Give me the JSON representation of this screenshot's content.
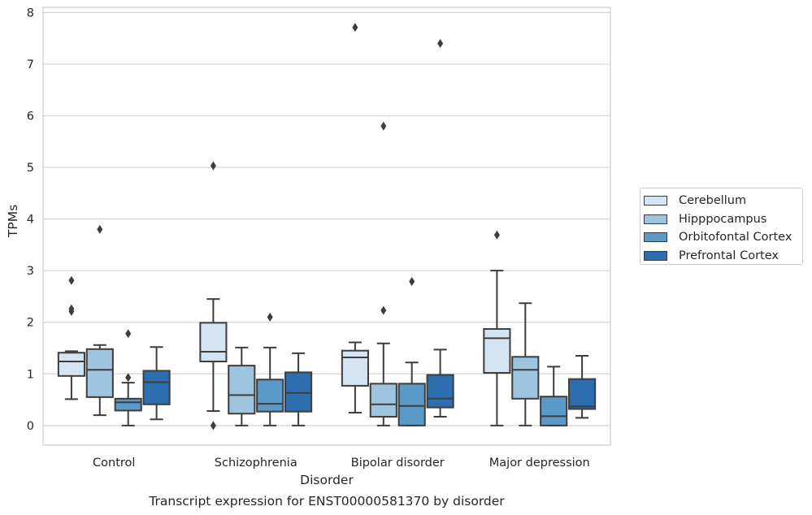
{
  "chart_data": {
    "type": "box",
    "title": "Transcript expression for ENST00000581370 by disorder",
    "xlabel": "Disorder",
    "ylabel": "TPMs",
    "ylim": [
      -0.38,
      8.1
    ],
    "yticks": [
      0,
      1,
      2,
      3,
      4,
      5,
      6,
      7,
      8
    ],
    "grid": true,
    "legend_position": "right",
    "categories": [
      "Control",
      "Schizophrenia",
      "Bipolar disorder",
      "Major depression"
    ],
    "series": [
      {
        "name": "Cerebellum",
        "color": "#d4e4f3",
        "boxes": [
          {
            "whisker_low": 0.51,
            "q1": 0.96,
            "median": 1.24,
            "q3": 1.41,
            "whisker_high": 1.44,
            "outliers": [
              2.21,
              2.26,
              2.81
            ]
          },
          {
            "whisker_low": 0.28,
            "q1": 1.24,
            "median": 1.43,
            "q3": 1.99,
            "whisker_high": 2.45,
            "outliers": [
              0.0,
              5.03
            ]
          },
          {
            "whisker_low": 0.25,
            "q1": 0.77,
            "median": 1.32,
            "q3": 1.45,
            "whisker_high": 1.61,
            "outliers": [
              7.71
            ]
          },
          {
            "whisker_low": 0.0,
            "q1": 1.02,
            "median": 1.69,
            "q3": 1.87,
            "whisker_high": 3.0,
            "outliers": [
              3.69
            ]
          }
        ]
      },
      {
        "name": "Hipppocampus",
        "color": "#9ec5e0",
        "boxes": [
          {
            "whisker_low": 0.2,
            "q1": 0.55,
            "median": 1.08,
            "q3": 1.48,
            "whisker_high": 1.56,
            "outliers": [
              3.8
            ]
          },
          {
            "whisker_low": 0.0,
            "q1": 0.23,
            "median": 0.59,
            "q3": 1.16,
            "whisker_high": 1.51,
            "outliers": []
          },
          {
            "whisker_low": 0.0,
            "q1": 0.17,
            "median": 0.41,
            "q3": 0.81,
            "whisker_high": 1.59,
            "outliers": [
              2.23,
              5.8
            ]
          },
          {
            "whisker_low": 0.0,
            "q1": 0.52,
            "median": 1.08,
            "q3": 1.33,
            "whisker_high": 2.37,
            "outliers": []
          }
        ]
      },
      {
        "name": "Orbitofontal Cortex",
        "color": "#5b9ac8",
        "boxes": [
          {
            "whisker_low": 0.0,
            "q1": 0.29,
            "median": 0.45,
            "q3": 0.52,
            "whisker_high": 0.83,
            "outliers": [
              0.93,
              1.78
            ]
          },
          {
            "whisker_low": 0.0,
            "q1": 0.27,
            "median": 0.42,
            "q3": 0.89,
            "whisker_high": 1.51,
            "outliers": [
              2.1
            ]
          },
          {
            "whisker_low": 0.0,
            "q1": 0.0,
            "median": 0.38,
            "q3": 0.81,
            "whisker_high": 1.22,
            "outliers": [
              2.79
            ]
          },
          {
            "whisker_low": 0.0,
            "q1": 0.0,
            "median": 0.18,
            "q3": 0.56,
            "whisker_high": 1.14,
            "outliers": []
          }
        ]
      },
      {
        "name": "Prefrontal Cortex",
        "color": "#2c6eaf",
        "boxes": [
          {
            "whisker_low": 0.12,
            "q1": 0.41,
            "median": 0.84,
            "q3": 1.06,
            "whisker_high": 1.52,
            "outliers": []
          },
          {
            "whisker_low": 0.0,
            "q1": 0.27,
            "median": 0.63,
            "q3": 1.03,
            "whisker_high": 1.4,
            "outliers": []
          },
          {
            "whisker_low": 0.17,
            "q1": 0.35,
            "median": 0.52,
            "q3": 0.98,
            "whisker_high": 1.47,
            "outliers": [
              7.4
            ]
          },
          {
            "whisker_low": 0.15,
            "q1": 0.32,
            "median": 0.37,
            "q3": 0.9,
            "whisker_high": 1.35,
            "outliers": []
          }
        ]
      }
    ]
  }
}
